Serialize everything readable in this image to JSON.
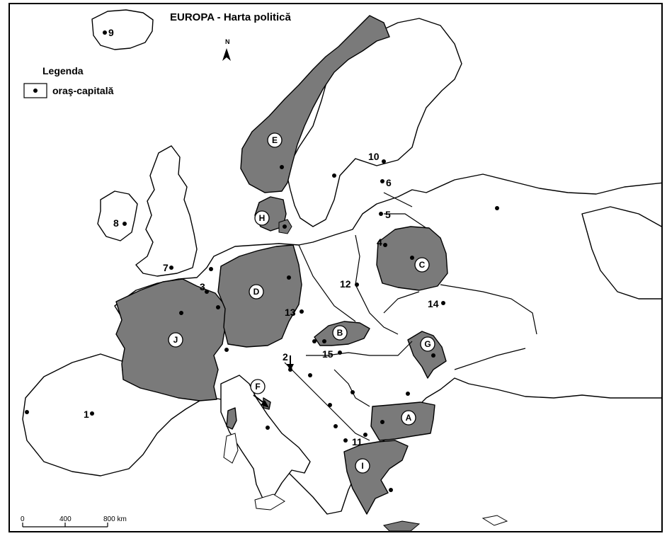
{
  "title": "EUROPA - Harta politică",
  "north_label": "N",
  "legend": {
    "title": "Legenda",
    "capital_label": "oraş-capitală"
  },
  "scale": {
    "ticks": [
      "0",
      "400",
      "800 km"
    ]
  },
  "number_labels": [
    "1",
    "2",
    "3",
    "4",
    "5",
    "6",
    "7",
    "8",
    "9",
    "10",
    "11",
    "12",
    "13",
    "14",
    "15"
  ],
  "letter_labels": [
    "A",
    "B",
    "C",
    "D",
    "E",
    "F",
    "G",
    "H",
    "I",
    "J"
  ],
  "colors": {
    "highlight_fill": "#7a7a7a",
    "land_fill": "#ffffff",
    "outline": "#000000"
  }
}
